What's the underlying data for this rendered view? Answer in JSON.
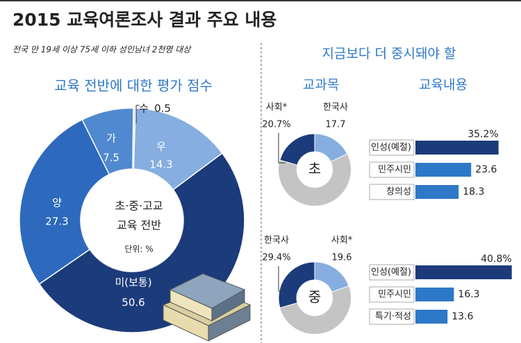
{
  "header": {
    "title": "2015 교육여론조사 결과 주요 내용",
    "subtitle": "전국 만 19세 이상 75세 이하 성인남녀 2천명 대상"
  },
  "panel": {
    "title": "지금보다 더 중시돼야 할",
    "subjects_label": "교과목",
    "contents_label": "교육내용"
  },
  "chart_data": [
    {
      "type": "pie",
      "title": "교육 전반에 대한 평가 점수",
      "center_text": [
        "초·중·고교",
        "교육 전반"
      ],
      "unit": "단위: %",
      "categories": [
        "수",
        "우",
        "미(보통)",
        "양",
        "가"
      ],
      "values": [
        0.5,
        14.3,
        50.6,
        27.3,
        7.5
      ],
      "colors": [
        "#c9d9ef",
        "#86aee0",
        "#1c3b7a",
        "#2d69bd",
        "#5089d0"
      ]
    },
    {
      "type": "pie",
      "center_text": [
        "초"
      ],
      "categories": [
        "사회*",
        "한국사"
      ],
      "values": [
        20.7,
        17.7
      ],
      "value_labels": [
        "20.7%",
        "17.7"
      ],
      "colors": [
        "#1c3b7a",
        "#86aee0"
      ]
    },
    {
      "type": "bar",
      "orientation": "horizontal",
      "categories": [
        "인성(예절)",
        "민주시민",
        "창의성"
      ],
      "values": [
        35.2,
        23.6,
        18.3
      ],
      "value_labels": [
        "35.2%",
        "23.6",
        "18.3"
      ],
      "colors": [
        "#1c3b7a",
        "#2e78c8",
        "#2e78c8"
      ]
    },
    {
      "type": "pie",
      "center_text": [
        "중"
      ],
      "categories": [
        "한국사",
        "사회*"
      ],
      "values": [
        29.4,
        19.6
      ],
      "value_labels": [
        "29.4%",
        "19.6"
      ],
      "colors": [
        "#1c3b7a",
        "#86aee0"
      ]
    },
    {
      "type": "bar",
      "orientation": "horizontal",
      "categories": [
        "인성(예절)",
        "민주시민",
        "특기·적성"
      ],
      "values": [
        40.8,
        16.3,
        13.6
      ],
      "value_labels": [
        "40.8%",
        "16.3",
        "13.6"
      ],
      "colors": [
        "#1c3b7a",
        "#2e78c8",
        "#2e78c8"
      ]
    }
  ]
}
